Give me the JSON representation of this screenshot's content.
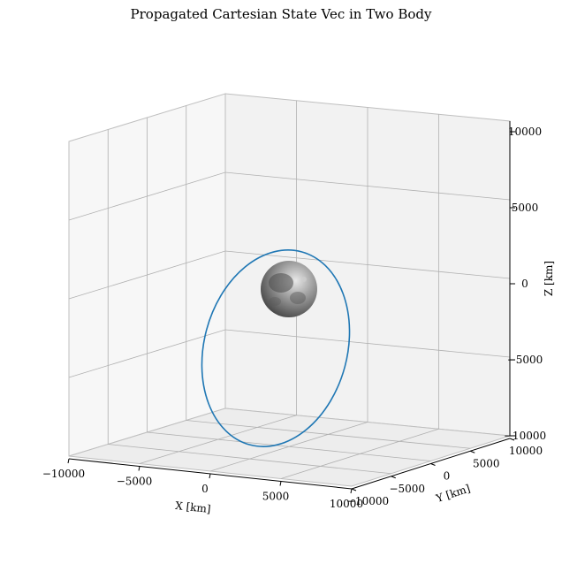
{
  "chart_data": {
    "type": "3d-line",
    "title": "Propagated Cartesian State Vec in Two Body",
    "xlabel": "X [km]",
    "ylabel": "Y [km]",
    "zlabel": "Z [km]",
    "x_ticks": [
      "−10000",
      "−5000",
      "0",
      "5000",
      "10000"
    ],
    "y_ticks": [
      "−10000",
      "−5000",
      "0",
      "5000",
      "10000"
    ],
    "z_ticks": [
      "−10000",
      "−5000",
      "0",
      "5000",
      "10000"
    ],
    "xlim": [
      -10000,
      10000
    ],
    "ylim": [
      -10000,
      10000
    ],
    "zlim": [
      -10000,
      10000
    ],
    "grid": true,
    "series": [
      {
        "color": "#1f77b4",
        "shape": "closed elliptical orbit around the central body"
      }
    ],
    "central_body": {
      "radius_km": 1737,
      "color": "#7a7a7a"
    }
  }
}
